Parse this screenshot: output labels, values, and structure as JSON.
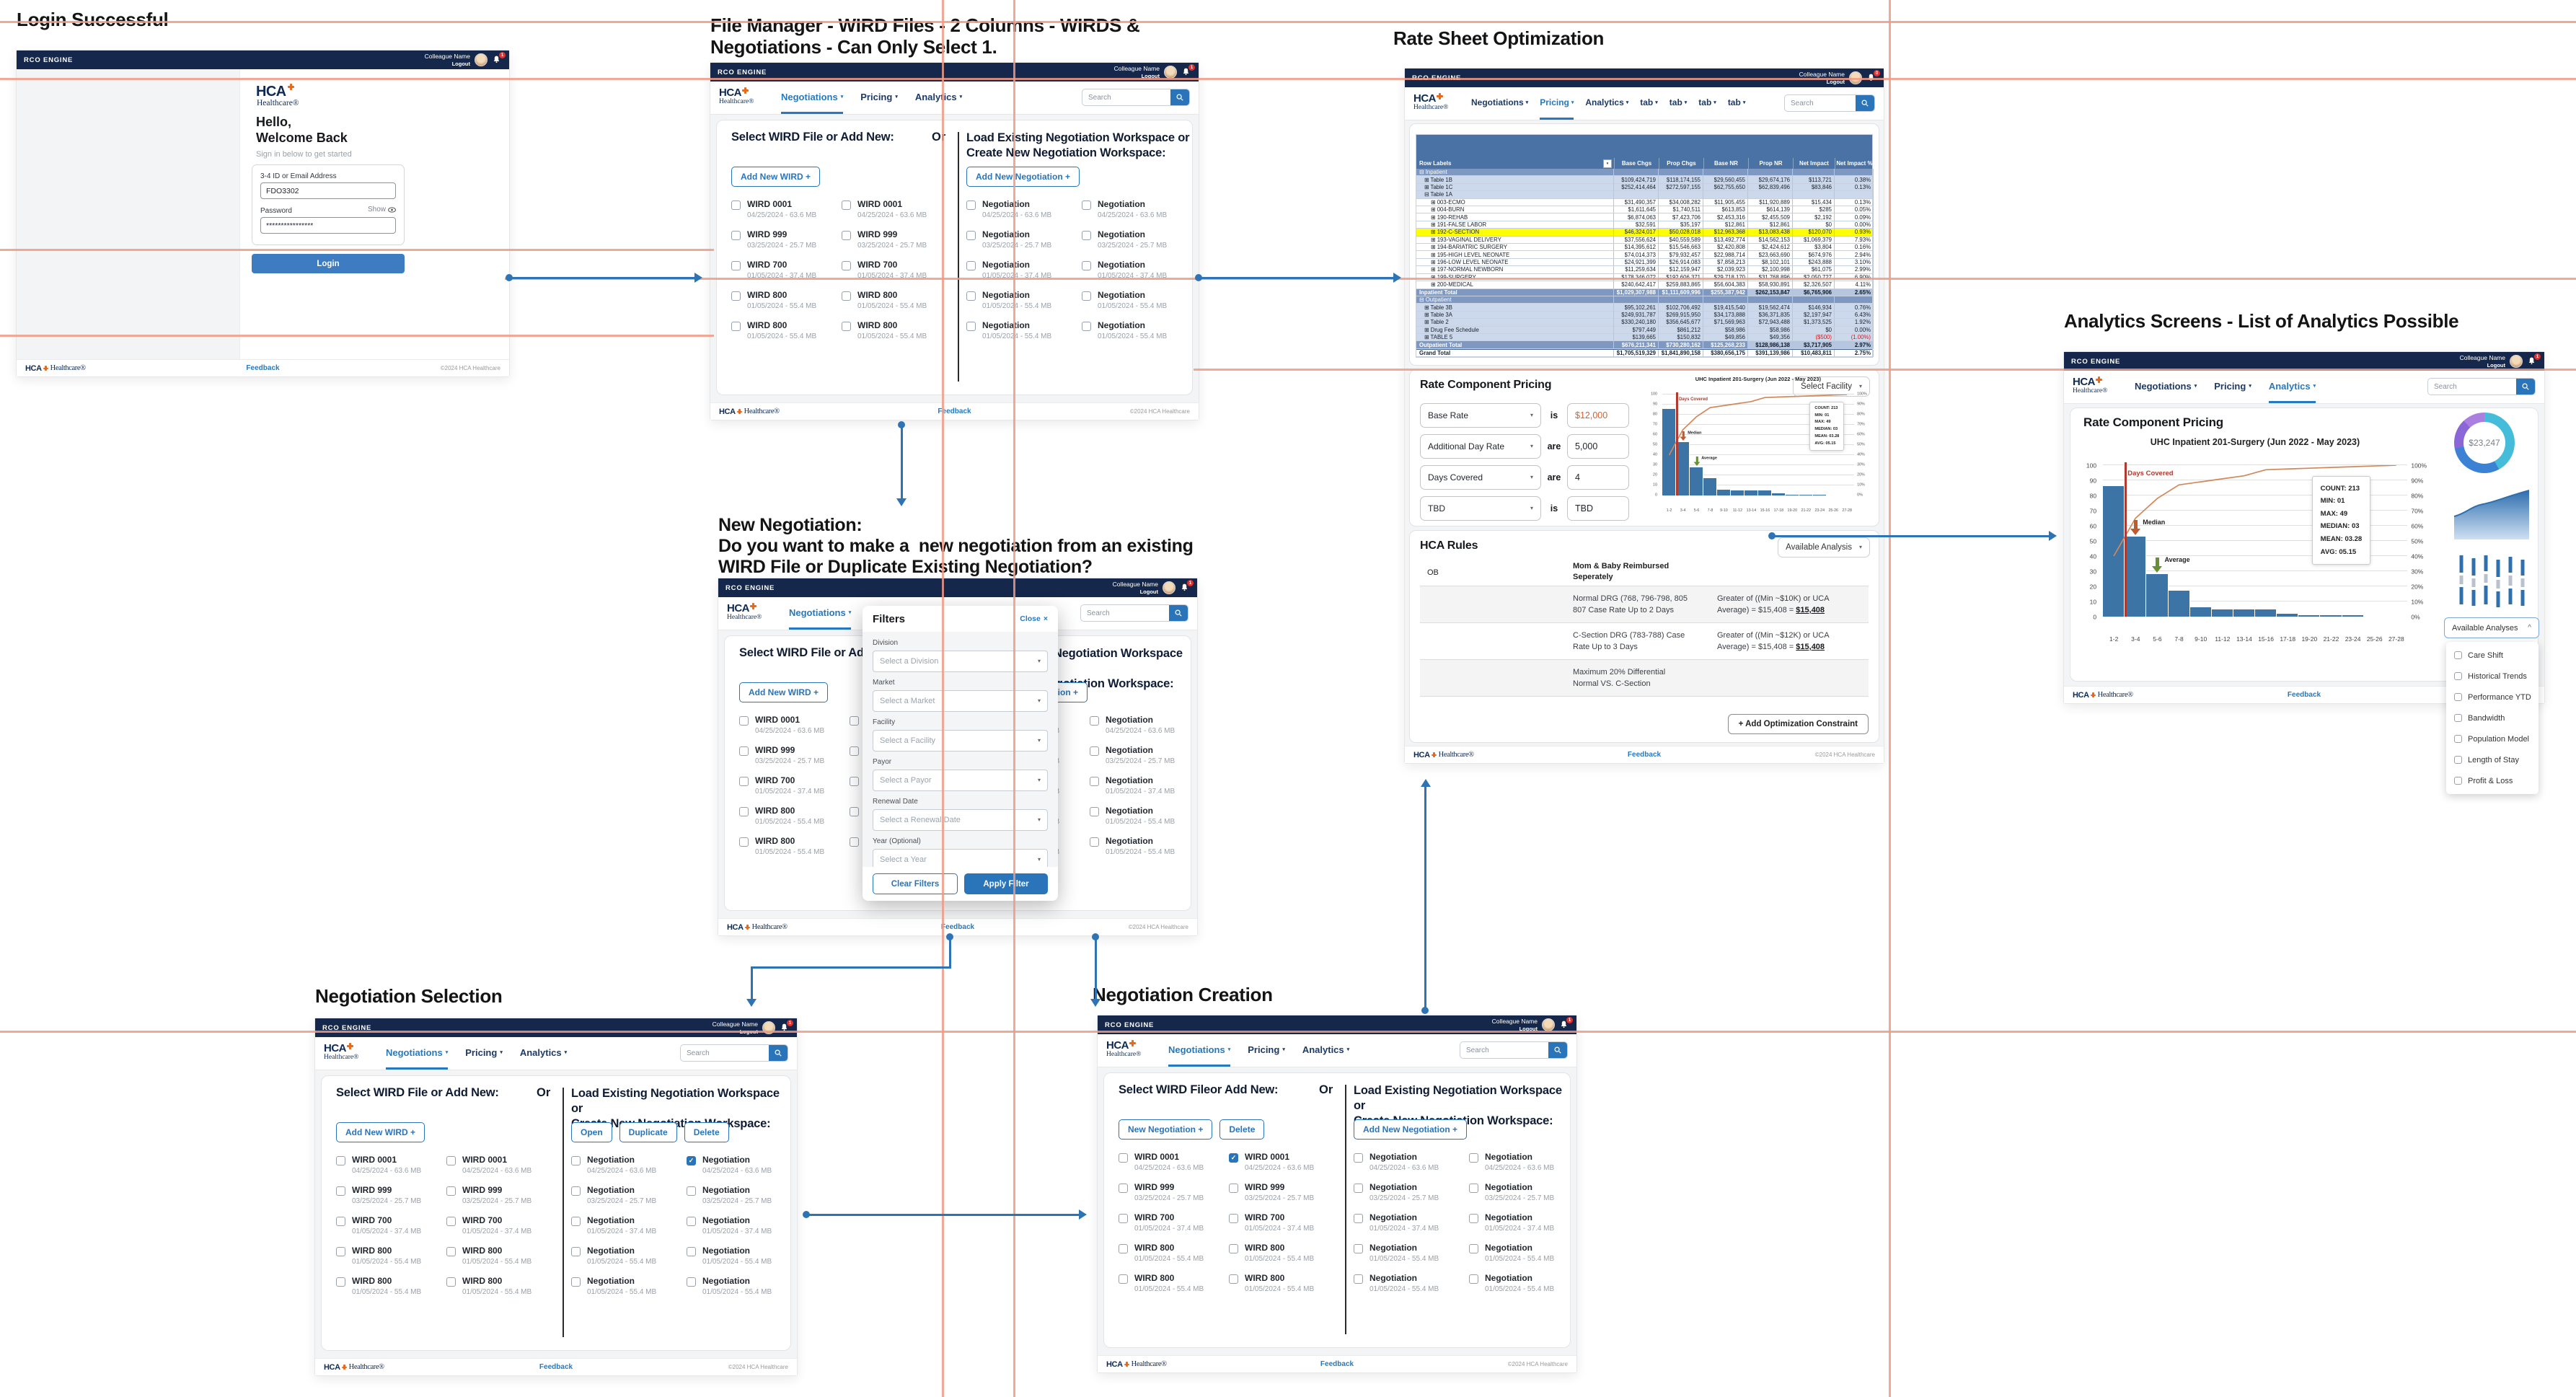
{
  "board": {
    "titles": {
      "login": "Login Successful",
      "file_manager_1": "File Manager - WIRD Files - 2 Columns - WIRDS &",
      "file_manager_2": "Negotiations - Can Only Select 1.",
      "rate_sheet": "Rate Sheet Optimization",
      "new_negotiation_1": "New Negotiation:",
      "new_negotiation_2": "Do you want to make a  new negotiation from an existing",
      "new_negotiation_3": "WIRD File or Duplicate Existing Negotiation?",
      "analytics": "Analytics Screens - List of Analytics Possible",
      "negotiation_selection": "Negotiation Selection",
      "negotiation_creation": "Negotiation Creation"
    }
  },
  "icons": {
    "check": "✓",
    "caret_down": "▾",
    "caret_up": "^",
    "close_x": "×"
  },
  "common": {
    "brand": "RCO ENGINE",
    "user": "Colleague Name",
    "logout": "Logout",
    "logo_hca": "HCA",
    "logo_healthcare": "Healthcare®",
    "search": "Search",
    "feedback": "Feedback",
    "copyright": "©2024 HCA Healthcare",
    "or": "Or"
  },
  "tabs": {
    "neg": [
      {
        "label": "Negotiations",
        "_class": "active"
      },
      {
        "label": "Pricing"
      },
      {
        "label": "Analytics"
      }
    ],
    "pricing": [
      {
        "label": "Negotiations"
      },
      {
        "label": "Pricing",
        "_class": "active"
      },
      {
        "label": "Analytics"
      },
      {
        "label": "tab"
      },
      {
        "label": "tab"
      },
      {
        "label": "tab"
      },
      {
        "label": "tab"
      }
    ],
    "analytics": [
      {
        "label": "Negotiations"
      },
      {
        "label": "Pricing"
      },
      {
        "label": "Analytics",
        "_class": "active"
      }
    ]
  },
  "panel_headings": {
    "left": "Select WIRD File or Add New:",
    "left_typo": "Select WIRD Fileor Add New:",
    "right_1": "Load Existing Negotiation Workspace or",
    "right_2": "Create New Negotiation Workspace:"
  },
  "lists": {
    "wird5": [
      {
        "name": "WIRD 0001",
        "meta": "04/25/2024 - 63.6 MB"
      },
      {
        "name": "WIRD 999",
        "meta": "03/25/2024 - 25.7 MB"
      },
      {
        "name": "WIRD 700",
        "meta": "01/05/2024 - 37.4 MB"
      },
      {
        "name": "WIRD 800",
        "meta": "01/05/2024 - 55.4 MB"
      },
      {
        "name": "WIRD 800",
        "meta": "01/05/2024 - 55.4 MB"
      }
    ],
    "wird5_c1": [
      {
        "name": "WIRD 0001",
        "meta": "04/25/2024 - 63.6 MB",
        "_class": "checked"
      },
      {
        "name": "WIRD 999",
        "meta": "03/25/2024 - 25.7 MB"
      },
      {
        "name": "WIRD 700",
        "meta": "01/05/2024 - 37.4 MB"
      },
      {
        "name": "WIRD 800",
        "meta": "01/05/2024 - 55.4 MB"
      },
      {
        "name": "WIRD 800",
        "meta": "01/05/2024 - 55.4 MB"
      }
    ],
    "neg5": [
      {
        "name": "Negotiation",
        "meta": "04/25/2024 - 63.6 MB"
      },
      {
        "name": "Negotiation",
        "meta": "03/25/2024 - 25.7 MB"
      },
      {
        "name": "Negotiation",
        "meta": "01/05/2024 - 37.4 MB"
      },
      {
        "name": "Negotiation",
        "meta": "01/05/2024 - 55.4 MB"
      },
      {
        "name": "Negotiation",
        "meta": "01/05/2024 - 55.4 MB"
      }
    ],
    "neg5_c1": [
      {
        "name": "Negotiation",
        "meta": "04/25/2024 - 63.6 MB",
        "_class": "checked"
      },
      {
        "name": "Negotiation",
        "meta": "03/25/2024 - 25.7 MB"
      },
      {
        "name": "Negotiation",
        "meta": "01/05/2024 - 37.4 MB"
      },
      {
        "name": "Negotiation",
        "meta": "01/05/2024 - 55.4 MB"
      },
      {
        "name": "Negotiation",
        "meta": "01/05/2024 - 55.4 MB"
      }
    ]
  },
  "login": {
    "badge": "1",
    "hello_1": "Hello,",
    "hello_2": "Welcome Back",
    "subtitle": "Sign in below to get started",
    "id_label": "3-4 ID or Email Address",
    "id_value": "FDO3302",
    "password_label": "Password",
    "show_label": "Show",
    "password_value": "****************",
    "login_button": "Login"
  },
  "file_manager": {
    "badge": "1",
    "buttons_left": [
      {
        "label": "Add New WIRD  +"
      }
    ],
    "buttons_right": [
      {
        "label": "Add New Negotiation  +"
      }
    ]
  },
  "new_negotiation": {
    "badge": "1",
    "buttons_left": [
      {
        "label": "Add New WIRD  +"
      }
    ],
    "buttons_right": [
      {
        "label": "Add New Negotiation  +"
      }
    ],
    "filters": {
      "title": "Filters",
      "close": "Close",
      "fields": [
        {
          "label": "Division",
          "placeholder": "Select a Division"
        },
        {
          "label": "Market",
          "placeholder": "Select a Market"
        },
        {
          "label": "Facility",
          "placeholder": "Select a Facility"
        },
        {
          "label": "Payor",
          "placeholder": "Select a Payor"
        },
        {
          "label": "Renewal Date",
          "placeholder": "Select a Renewal Date"
        },
        {
          "label": "Year  (Optional)",
          "placeholder": "Select a Year"
        }
      ],
      "clear": "Clear Filters",
      "apply": "Apply Filter"
    }
  },
  "negotiation_selection": {
    "badge": "1",
    "buttons_left": [
      {
        "label": "Add New WIRD  +"
      }
    ],
    "buttons_right": [
      {
        "label": "Open"
      },
      {
        "label": "Duplicate"
      },
      {
        "label": "Delete"
      }
    ]
  },
  "negotiation_creation": {
    "badge": "1",
    "buttons_left": [
      {
        "label": "New Negotiation  +"
      },
      {
        "label": "Delete"
      }
    ],
    "buttons_right": [
      {
        "label": "Add New Negotiation  +"
      }
    ]
  },
  "rate_sheet": {
    "badge": "0",
    "table": {
      "columns": [
        "Row Labels",
        "Base Chgs",
        "Prop Chgs",
        "Base NR",
        "Prop NR",
        "Net Impact",
        "Net Impact %"
      ],
      "rows": [
        {
          "label": "⊟ Inpatient",
          "_class": "group",
          "values": [
            "",
            "",
            "",
            "",
            "",
            ""
          ]
        },
        {
          "label": "⊞ Table 1B",
          "_class": "subtable",
          "values": [
            "$109,424,719",
            "$118,174,155",
            "$29,560,455",
            "$29,674,176",
            "$113,721",
            "0.38%"
          ]
        },
        {
          "label": "⊞ Table 1C",
          "_class": "subtable",
          "values": [
            "$252,414,464",
            "$272,597,155",
            "$62,755,650",
            "$62,839,496",
            "$83,846",
            "0.13%"
          ]
        },
        {
          "label": "⊟ Table 1A",
          "_class": "subtable",
          "values": [
            "",
            "",
            "",
            "",
            "",
            ""
          ]
        },
        {
          "label": "⊞ 003-ECMO",
          "_class": "detail",
          "values": [
            "$31,490,357",
            "$34,008,282",
            "$11,905,455",
            "$11,920,889",
            "$15,434",
            "0.13%"
          ]
        },
        {
          "label": "⊞ 004-BURN",
          "_class": "detail",
          "values": [
            "$1,611,645",
            "$1,740,511",
            "$613,853",
            "$614,139",
            "$285",
            "0.05%"
          ]
        },
        {
          "label": "⊞ 190-REHAB",
          "_class": "detail",
          "values": [
            "$6,874,063",
            "$7,423,706",
            "$2,453,316",
            "$2,455,509",
            "$2,192",
            "0.09%"
          ]
        },
        {
          "label": "⊞ 191-FALSE LABOR",
          "_class": "detail",
          "values": [
            "$32,591",
            "$35,197",
            "$12,861",
            "$12,861",
            "$0",
            "0.00%"
          ]
        },
        {
          "label": "⊞ 192-C-SECTION",
          "_class": "detail highlight",
          "values": [
            "$46,324,017",
            "$50,028,018",
            "$12,963,368",
            "$13,083,438",
            "$120,070",
            "0.93%"
          ]
        },
        {
          "label": "⊞ 193-VAGINAL DELIVERY",
          "_class": "detail",
          "values": [
            "$37,556,624",
            "$40,559,589",
            "$13,492,774",
            "$14,562,153",
            "$1,069,379",
            "7.93%"
          ]
        },
        {
          "label": "⊞ 194-BARIATRIC SURGERY",
          "_class": "detail",
          "values": [
            "$14,395,612",
            "$15,546,663",
            "$2,420,808",
            "$2,424,612",
            "$3,804",
            "0.16%"
          ]
        },
        {
          "label": "⊞ 195-HIGH LEVEL NEONATE",
          "_class": "detail",
          "values": [
            "$74,014,373",
            "$79,932,457",
            "$22,988,714",
            "$23,663,690",
            "$674,976",
            "2.94%"
          ]
        },
        {
          "label": "⊞ 196-LOW LEVEL NEONATE",
          "_class": "detail",
          "values": [
            "$24,921,399",
            "$26,914,083",
            "$7,858,213",
            "$8,102,101",
            "$243,888",
            "3.10%"
          ]
        },
        {
          "label": "⊞ 197-NORMAL NEWBORN",
          "_class": "detail",
          "values": [
            "$11,259,634",
            "$12,159,947",
            "$2,039,923",
            "$2,100,998",
            "$61,075",
            "2.99%"
          ]
        },
        {
          "label": "⊞ 199-SURGERY",
          "_class": "detail",
          "values": [
            "$178,346,072",
            "$192,606,371",
            "$29,718,170",
            "$31,768,896",
            "$2,050,727",
            "6.90%"
          ]
        },
        {
          "label": "⊞ 200-MEDICAL",
          "_class": "detail",
          "values": [
            "$240,642,417",
            "$259,883,865",
            "$56,604,383",
            "$58,930,891",
            "$2,326,507",
            "4.11%"
          ]
        },
        {
          "label": "Inpatient Total",
          "_class": "total",
          "values": [
            "$1,029,307,988",
            "$1,111,609,996",
            "$255,387,942",
            "$262,153,847",
            "$6,765,906",
            "2.65%"
          ]
        },
        {
          "label": "⊟ Outpatient",
          "_class": "group",
          "values": [
            "",
            "",
            "",
            "",
            "",
            ""
          ]
        },
        {
          "label": "⊞ Table 3B",
          "_class": "subtable",
          "values": [
            "$95,102,261",
            "$102,706,492",
            "$19,415,540",
            "$19,562,474",
            "$146,934",
            "0.76%"
          ]
        },
        {
          "label": "⊞ Table 3A",
          "_class": "subtable",
          "values": [
            "$249,931,787",
            "$269,915,950",
            "$34,173,888",
            "$36,371,835",
            "$2,197,947",
            "6.43%"
          ]
        },
        {
          "label": "⊞ Table 2",
          "_class": "subtable",
          "values": [
            "$330,240,180",
            "$356,645,677",
            "$71,569,963",
            "$72,943,488",
            "$1,373,525",
            "1.92%"
          ]
        },
        {
          "label": "⊞ Drug Fee Schedule",
          "_class": "subtable",
          "values": [
            "$797,449",
            "$861,212",
            "$58,986",
            "$58,986",
            "$0",
            "0.00%"
          ]
        },
        {
          "label": "⊞ TABLE 5",
          "_class": "subtable negvals",
          "values": [
            "$139,665",
            "$150,832",
            "$49,856",
            "$49,356",
            "($500)",
            "(1.00%)"
          ]
        },
        {
          "label": "Outpatient Total",
          "_class": "total",
          "values": [
            "$676,211,341",
            "$730,280,162",
            "$125,268,233",
            "$128,986,138",
            "$3,717,905",
            "2.97%"
          ]
        },
        {
          "label": "Grand Total",
          "_class": "grand",
          "values": [
            "$1,705,519,329",
            "$1,841,890,158",
            "$380,656,175",
            "$391,139,986",
            "$10,483,811",
            "2.75%"
          ]
        }
      ]
    },
    "rate_component": {
      "heading": "Rate Component Pricing",
      "facility_dropdown": "Select Facility",
      "rows": [
        {
          "field": "Base Rate",
          "verb": "is",
          "value": "$12,000",
          "_class": "orange"
        },
        {
          "field": "Additional Day Rate",
          "verb": "are",
          "value": "5,000"
        },
        {
          "field": "Days Covered",
          "verb": "are",
          "value": "4"
        },
        {
          "field": "TBD",
          "verb": "is",
          "value": "TBD"
        }
      ]
    },
    "hca_rules": {
      "heading": "HCA Rules",
      "dropdown": "Available Analysis",
      "col1": "OB",
      "header": [
        "Mom & Baby Reimbursed",
        "Seperately"
      ],
      "rows": [
        {
          "_class": "shade",
          "c2": [
            "Normal DRG (768, 796-798, 805",
            "807 Case Rate Up to 2 Days"
          ],
          "c3a": "Greater of ((Min ~$10K) or UCA",
          "c3b": "Average) = $15,408 = ",
          "c3bold": "$15,408"
        },
        {
          "c2": [
            "C-Section DRG (783-788) Case",
            "Rate Up to 3 Days"
          ],
          "c3a": "Greater of ((Min ~$12K) or UCA",
          "c3b": "Average) = $15,408 = ",
          "c3bold": "$15,408"
        },
        {
          "_class": "shade",
          "c2": [
            "Maximum 20% Differential",
            "Normal VS. C-Section"
          ],
          "c3a": "",
          "c3b": "",
          "c3bold": ""
        }
      ],
      "add_button": "+ Add Optimization Constraint"
    }
  },
  "analytics": {
    "badge": "1",
    "heading": "Rate Component Pricing",
    "dropdown": "Available Analyses",
    "available_analyses": [
      "Care Shift",
      "Historical Trends",
      "Performance YTD",
      "Bandwidth",
      "Population Model",
      "Length of Stay",
      "Profit & Loss"
    ]
  },
  "chart_data": [
    {
      "type": "bar",
      "subtype": "pareto-histogram",
      "title": "UHC Inpatient 201-Surgery (Jun 2022 - May 2023)",
      "categories": [
        "1-2",
        "3-4",
        "5-6",
        "7-8",
        "9-10",
        "11-12",
        "13-14",
        "15-16",
        "17-18",
        "19-20",
        "21-22",
        "23-24",
        "25-26",
        "27-28"
      ],
      "values": [
        86,
        53,
        28,
        17,
        6,
        5,
        5,
        5,
        2,
        1,
        1,
        1,
        0,
        0
      ],
      "cumulative_pct": [
        40,
        65,
        78,
        87,
        89,
        91,
        93,
        97,
        97.5,
        98,
        98.5,
        99,
        99.5,
        100
      ],
      "ylim": [
        0,
        100
      ],
      "ylim_right": [
        "0%",
        "100%"
      ],
      "grid": true,
      "stats": [
        "COUNT: 213",
        "MIN: 01",
        "MAX: 49",
        "MEDIAN: 03",
        "MEAN: 03.28",
        "AVG: 05.15"
      ],
      "annotations": {
        "days_covered": "Days Covered",
        "median": "Median",
        "average": "Average"
      }
    },
    {
      "type": "pie",
      "subtype": "donut",
      "center_label": "$23,247",
      "segments": [
        {
          "color": "#45bcd9",
          "pct": 42
        },
        {
          "color": "#3b82d4",
          "pct": 30
        },
        {
          "color": "#8a66d6",
          "pct": 16
        },
        {
          "color": "#ab7fe0",
          "pct": 12
        }
      ]
    }
  ]
}
